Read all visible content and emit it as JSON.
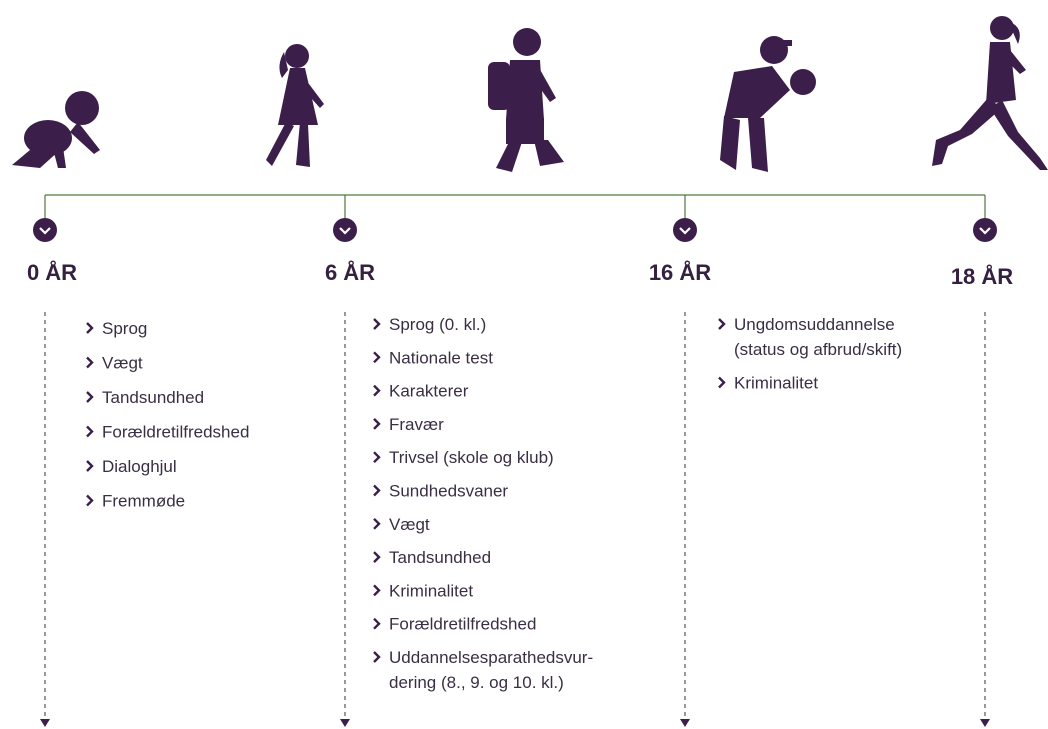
{
  "milestones": [
    {
      "label": "0 ÅR",
      "items": [
        [
          "Sprog"
        ],
        [
          "Vægt"
        ],
        [
          "Tandsundhed"
        ],
        [
          "Forældretilfredshed"
        ],
        [
          "Dialoghjul"
        ],
        [
          "Fremmøde"
        ]
      ]
    },
    {
      "label": "6 ÅR",
      "items": [
        [
          "Sprog (0. kl.)"
        ],
        [
          "Nationale test"
        ],
        [
          "Karakterer"
        ],
        [
          "Fravær"
        ],
        [
          "Trivsel (skole og klub)"
        ],
        [
          "Sundhedsvaner"
        ],
        [
          "Vægt"
        ],
        [
          "Tandsundhed"
        ],
        [
          "Kriminalitet"
        ],
        [
          "Forældretilfredshed"
        ],
        [
          "Uddannelsesparathedsvur-",
          "dering (8., 9. og 10. kl.)"
        ]
      ]
    },
    {
      "label": "16 ÅR",
      "items": [
        [
          "Ungdomsuddannelse",
          "(status og afbrud/skift)"
        ],
        [
          "Kriminalitet"
        ]
      ]
    },
    {
      "label": "18 ÅR",
      "items": []
    }
  ]
}
